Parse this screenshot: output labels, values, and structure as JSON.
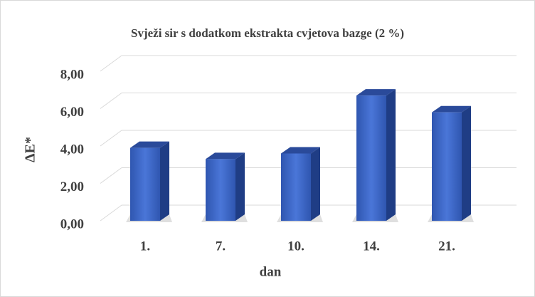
{
  "chart_data": {
    "type": "bar3d",
    "title": "Svježi sir s dodatkom ekstrakta cvjetova bazge (2 %)",
    "xlabel": "dan",
    "ylabel": "ΔE*",
    "categories": [
      "1.",
      "7.",
      "10.",
      "14.",
      "21."
    ],
    "values": [
      3.9,
      3.3,
      3.6,
      6.7,
      5.8
    ],
    "color": "#3a63c4",
    "ylim": [
      0,
      8
    ],
    "yticks": [
      {
        "value": 0,
        "label": "0,00"
      },
      {
        "value": 2,
        "label": "2,00"
      },
      {
        "value": 4,
        "label": "4,00"
      },
      {
        "value": 6,
        "label": "6,00"
      },
      {
        "value": 8,
        "label": "8,00"
      }
    ],
    "grid": true
  }
}
